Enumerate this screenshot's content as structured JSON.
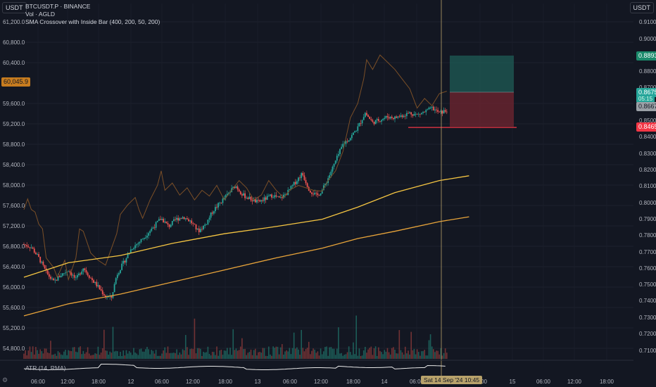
{
  "header": {
    "left_unit": "USDT",
    "right_unit": "USDT",
    "symbol": "BTCUSDT.P · BINANCE",
    "line2": "Vol · AGLD",
    "indicator": "SMA Crossover with Inside Bar (400, 200, 50, 200)"
  },
  "atr_label": "ATR (14, RMA)",
  "cursor_date": "Sat 14 Sep '24  10:45",
  "colors": {
    "background": "#131722",
    "up": "#26a69a",
    "down": "#ef5350",
    "sma_fast": "#e8a43a",
    "sma_slow": "#f5c542",
    "overlay": "#8a5a2b",
    "target": "#1f5c55",
    "stop": "#6b2430"
  },
  "chart_data": {
    "type": "candlestick",
    "left_axis": {
      "ticks": [
        "61,200.0",
        "60,800.0",
        "60,400.0",
        "59,600.0",
        "59,200.0",
        "58,800.0",
        "58,400.0",
        "58,000.0",
        "57,600.0",
        "57,200.0",
        "56,800.0",
        "56,400.0",
        "56,000.0",
        "55,600.0",
        "55,200.0",
        "54,800.0"
      ],
      "range": [
        54600,
        61400
      ]
    },
    "right_axis": {
      "ticks": [
        "0.9100",
        "0.9000",
        "0.8800",
        "0.8700",
        "0.8500",
        "0.8400",
        "0.8300",
        "0.8200",
        "0.8100",
        "0.8000",
        "0.7900",
        "0.7800",
        "0.7700",
        "0.7600",
        "0.7500",
        "0.7400",
        "0.7300",
        "0.7200",
        "0.7100"
      ],
      "range": [
        0.705,
        0.915
      ]
    },
    "x_axis": {
      "ticks": [
        "06:00",
        "12:00",
        "18:00",
        "12",
        "06:00",
        "12:00",
        "18:00",
        "13",
        "06:00",
        "12:00",
        "18:00",
        "14",
        "06:00",
        "18:00",
        "15",
        "06:00",
        "12:00",
        "18:00"
      ]
    },
    "price_badges": {
      "left_current": "60,045.9",
      "right_target": "0.8893",
      "right_current": "0.8675",
      "right_countdown": "05:15",
      "right_entry": "0.8667",
      "right_stop": "0.8465"
    },
    "price_path": [
      [
        0,
        56780
      ],
      [
        10,
        56720
      ],
      [
        20,
        56500
      ],
      [
        30,
        56200
      ],
      [
        40,
        56000
      ],
      [
        50,
        56150
      ],
      [
        60,
        56250
      ],
      [
        70,
        56050
      ],
      [
        80,
        56300
      ],
      [
        90,
        56080
      ],
      [
        100,
        55900
      ],
      [
        110,
        55700
      ],
      [
        118,
        55680
      ],
      [
        125,
        56150
      ],
      [
        135,
        56420
      ],
      [
        145,
        56700
      ],
      [
        155,
        56820
      ],
      [
        165,
        56980
      ],
      [
        175,
        57150
      ],
      [
        185,
        57320
      ],
      [
        195,
        57150
      ],
      [
        205,
        57300
      ],
      [
        215,
        57350
      ],
      [
        225,
        57250
      ],
      [
        235,
        57050
      ],
      [
        245,
        57200
      ],
      [
        255,
        57480
      ],
      [
        265,
        57650
      ],
      [
        275,
        57820
      ],
      [
        285,
        58000
      ],
      [
        295,
        57800
      ],
      [
        305,
        57720
      ],
      [
        315,
        57650
      ],
      [
        325,
        57720
      ],
      [
        335,
        57800
      ],
      [
        345,
        57720
      ],
      [
        355,
        57850
      ],
      [
        365,
        58050
      ],
      [
        375,
        58250
      ],
      [
        385,
        57900
      ],
      [
        395,
        57780
      ],
      [
        402,
        57900
      ],
      [
        410,
        58150
      ],
      [
        420,
        58500
      ],
      [
        430,
        58850
      ],
      [
        440,
        58990
      ],
      [
        450,
        59200
      ],
      [
        460,
        59500
      ],
      [
        470,
        59300
      ],
      [
        480,
        59360
      ],
      [
        490,
        59420
      ],
      [
        500,
        59400
      ],
      [
        510,
        59450
      ],
      [
        520,
        59500
      ],
      [
        530,
        59460
      ],
      [
        540,
        59520
      ],
      [
        550,
        59600
      ],
      [
        560,
        59500
      ],
      [
        570,
        59550
      ]
    ],
    "overlay_path": [
      [
        0,
        57500
      ],
      [
        5,
        57720
      ],
      [
        10,
        57500
      ],
      [
        15,
        57450
      ],
      [
        20,
        57200
      ],
      [
        25,
        57100
      ],
      [
        30,
        56500
      ],
      [
        40,
        56300
      ],
      [
        45,
        56100
      ],
      [
        55,
        56450
      ],
      [
        60,
        56050
      ],
      [
        70,
        56500
      ],
      [
        75,
        57100
      ],
      [
        80,
        57050
      ],
      [
        90,
        56600
      ],
      [
        100,
        56450
      ],
      [
        110,
        56350
      ],
      [
        118,
        56700
      ],
      [
        125,
        57000
      ],
      [
        130,
        57400
      ],
      [
        140,
        57600
      ],
      [
        150,
        57750
      ],
      [
        155,
        57500
      ],
      [
        160,
        57320
      ],
      [
        170,
        57700
      ],
      [
        180,
        58000
      ],
      [
        185,
        58300
      ],
      [
        190,
        57900
      ],
      [
        200,
        58050
      ],
      [
        210,
        57800
      ],
      [
        220,
        57950
      ],
      [
        230,
        57700
      ],
      [
        240,
        57900
      ],
      [
        250,
        57780
      ],
      [
        260,
        58000
      ],
      [
        270,
        57700
      ],
      [
        280,
        57900
      ],
      [
        290,
        58100
      ],
      [
        300,
        57950
      ],
      [
        310,
        57700
      ],
      [
        320,
        57800
      ],
      [
        330,
        58100
      ],
      [
        340,
        57900
      ],
      [
        350,
        57750
      ],
      [
        360,
        57920
      ],
      [
        370,
        58000
      ],
      [
        380,
        57950
      ],
      [
        390,
        57900
      ],
      [
        402,
        57880
      ],
      [
        410,
        58100
      ],
      [
        420,
        58300
      ],
      [
        430,
        58700
      ],
      [
        440,
        59400
      ],
      [
        450,
        59700
      ],
      [
        458,
        60200
      ],
      [
        462,
        60600
      ],
      [
        470,
        60400
      ],
      [
        480,
        60700
      ],
      [
        490,
        60550
      ],
      [
        500,
        60400
      ],
      [
        510,
        60200
      ],
      [
        520,
        60000
      ],
      [
        530,
        59600
      ],
      [
        540,
        59800
      ],
      [
        550,
        59650
      ],
      [
        560,
        59900
      ],
      [
        570,
        59950
      ]
    ],
    "sma_slow_path": [
      [
        0,
        56100
      ],
      [
        60,
        56400
      ],
      [
        130,
        56550
      ],
      [
        200,
        56800
      ],
      [
        270,
        57000
      ],
      [
        340,
        57150
      ],
      [
        402,
        57300
      ],
      [
        450,
        57550
      ],
      [
        500,
        57850
      ],
      [
        560,
        58100
      ],
      [
        600,
        58200
      ]
    ],
    "sma_fast_path": [
      [
        0,
        55300
      ],
      [
        60,
        55550
      ],
      [
        130,
        55750
      ],
      [
        200,
        56000
      ],
      [
        270,
        56250
      ],
      [
        340,
        56500
      ],
      [
        402,
        56700
      ],
      [
        450,
        56900
      ],
      [
        500,
        57050
      ],
      [
        560,
        57250
      ],
      [
        600,
        57350
      ]
    ],
    "levels": {
      "stop_line": 59200
    }
  }
}
